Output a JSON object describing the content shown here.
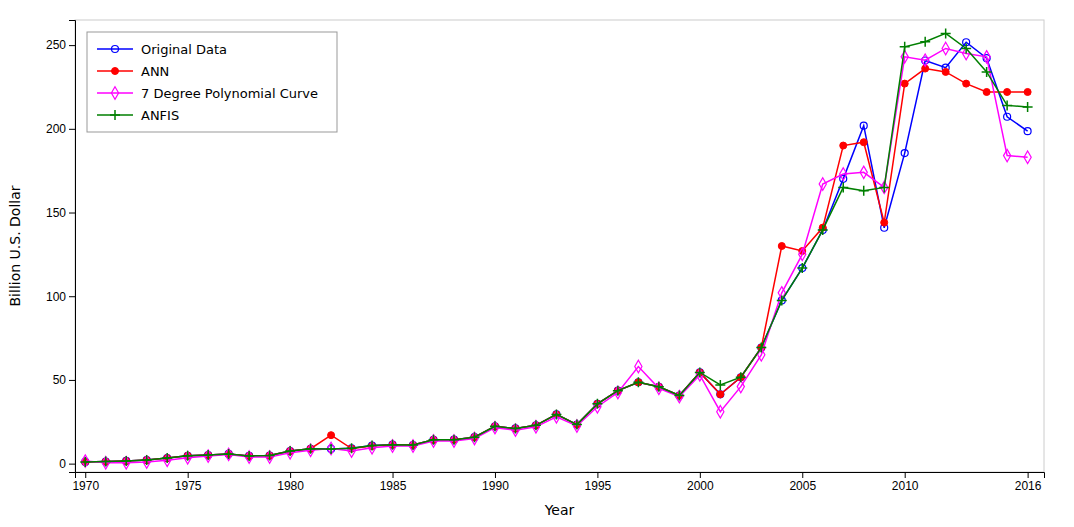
{
  "chart_data": {
    "type": "line",
    "xlabel": "Year",
    "ylabel": "Billion U.S. Dollar",
    "x": [
      1970,
      1971,
      1972,
      1973,
      1974,
      1975,
      1976,
      1977,
      1978,
      1979,
      1980,
      1981,
      1982,
      1983,
      1984,
      1985,
      1986,
      1987,
      1988,
      1989,
      1990,
      1991,
      1992,
      1993,
      1994,
      1995,
      1996,
      1997,
      1998,
      1999,
      2000,
      2001,
      2002,
      2003,
      2004,
      2005,
      2006,
      2007,
      2008,
      2009,
      2010,
      2011,
      2012,
      2013,
      2014,
      2015,
      2016
    ],
    "series": [
      {
        "name": "Original Data",
        "color": "#0000ff",
        "marker": "circle-open",
        "values": [
          1.0,
          1.2,
          1.6,
          2.1,
          3.3,
          4.7,
          5.1,
          5.8,
          4.6,
          4.8,
          7.5,
          8.9,
          8.8,
          9.2,
          10.8,
          11.3,
          11.1,
          14.2,
          14.3,
          15.8,
          22.3,
          21.0,
          22.9,
          29.4,
          23.3,
          35.7,
          43.6,
          48.6,
          45.9,
          40.7,
          54.5,
          41.4,
          51.6,
          69.3,
          97.5,
          116.8,
          139.6,
          170.1,
          201.9,
          140.9,
          185.5,
          240.8,
          236.5,
          251.7,
          242.2,
          207.2,
          198.6
        ]
      },
      {
        "name": "ANN",
        "color": "#ff0000",
        "marker": "circle",
        "values": [
          1.0,
          1.2,
          1.6,
          2.1,
          3.3,
          4.7,
          5.1,
          5.8,
          4.6,
          4.8,
          7.5,
          8.9,
          17.0,
          9.0,
          10.5,
          11.3,
          11.1,
          14.2,
          14.3,
          15.8,
          22.3,
          21.0,
          22.9,
          29.4,
          23.3,
          35.7,
          43.6,
          48.6,
          45.9,
          40.7,
          54.5,
          41.4,
          51.6,
          69.3,
          130.0,
          127.0,
          141.0,
          190.0,
          192.0,
          144.0,
          227.0,
          236.0,
          234.0,
          227.0,
          222.0,
          222.0,
          222.0
        ]
      },
      {
        "name": "7 Degree Polynomial Curve",
        "color": "#ff00ff",
        "marker": "diamond-open",
        "values": [
          1.5,
          0.5,
          0.5,
          1.0,
          2.0,
          3.5,
          4.5,
          5.5,
          4.0,
          4.0,
          6.5,
          8.0,
          9.0,
          7.5,
          9.5,
          10.5,
          10.5,
          13.5,
          13.5,
          15.0,
          21.5,
          20.0,
          22.0,
          28.0,
          22.5,
          34.0,
          42.5,
          58.0,
          45.0,
          40.0,
          53.0,
          31.0,
          46.0,
          65.0,
          102.0,
          125.0,
          167.0,
          173.0,
          174.0,
          165.0,
          243.0,
          241.0,
          248.0,
          245.0,
          243.0,
          184.0,
          183.0
        ]
      },
      {
        "name": "ANFIS",
        "color": "#007f00",
        "marker": "plus",
        "values": [
          1.0,
          1.2,
          1.6,
          2.1,
          3.3,
          4.7,
          5.1,
          5.8,
          4.6,
          4.8,
          7.5,
          8.9,
          8.8,
          9.2,
          10.8,
          11.3,
          11.1,
          14.2,
          14.3,
          15.8,
          22.3,
          21.0,
          22.9,
          29.4,
          23.3,
          35.7,
          43.6,
          48.6,
          45.9,
          40.7,
          54.5,
          47.0,
          51.6,
          69.3,
          97.5,
          116.8,
          139.6,
          165.0,
          163.0,
          165.0,
          249.0,
          252.0,
          257.0,
          248.0,
          234.0,
          214.0,
          213.0
        ]
      }
    ],
    "xlim": [
      1969.5,
      2016.8
    ],
    "ylim": [
      -5,
      265
    ],
    "xticks": [
      1970,
      1975,
      1980,
      1985,
      1990,
      1995,
      2000,
      2005,
      2010,
      2016
    ],
    "yticks": [
      0,
      50,
      100,
      150,
      200,
      250
    ],
    "grid": false,
    "legend": "upper left"
  }
}
